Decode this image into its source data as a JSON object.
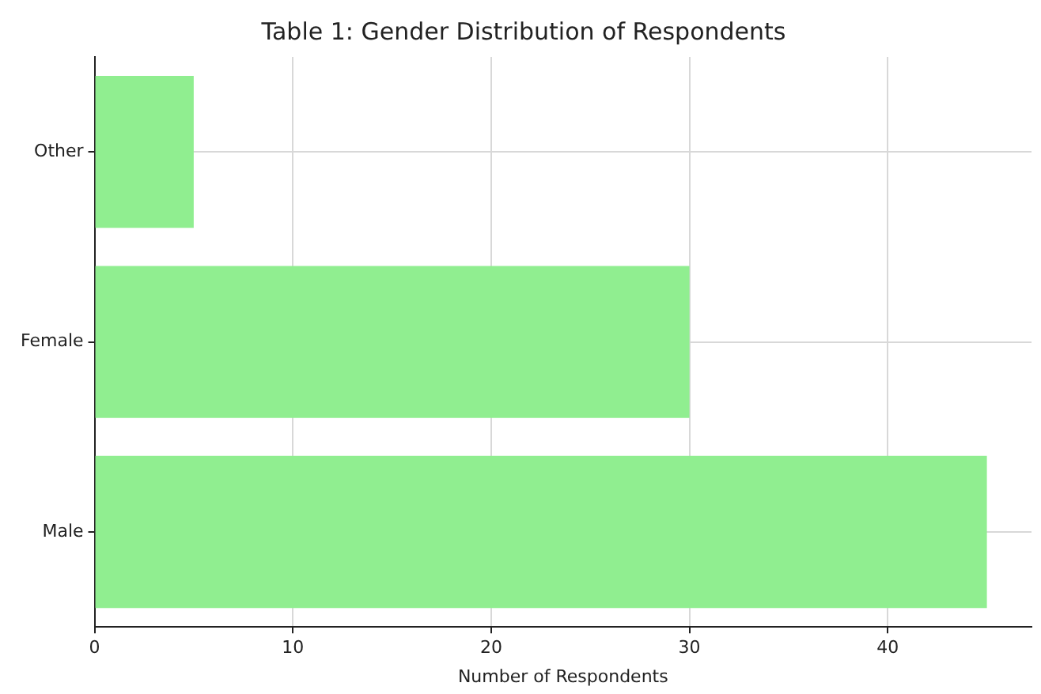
{
  "chart_data": {
    "type": "bar",
    "orientation": "horizontal",
    "title": "Table 1: Gender Distribution of Respondents",
    "xlabel": "Number of Respondents",
    "categories": [
      "Other",
      "Female",
      "Male"
    ],
    "values": [
      5,
      30,
      45
    ],
    "color": "#90ee90",
    "xlim": [
      0,
      47.25
    ],
    "xticks": [
      0,
      10,
      20,
      30,
      40
    ],
    "grid": true
  }
}
